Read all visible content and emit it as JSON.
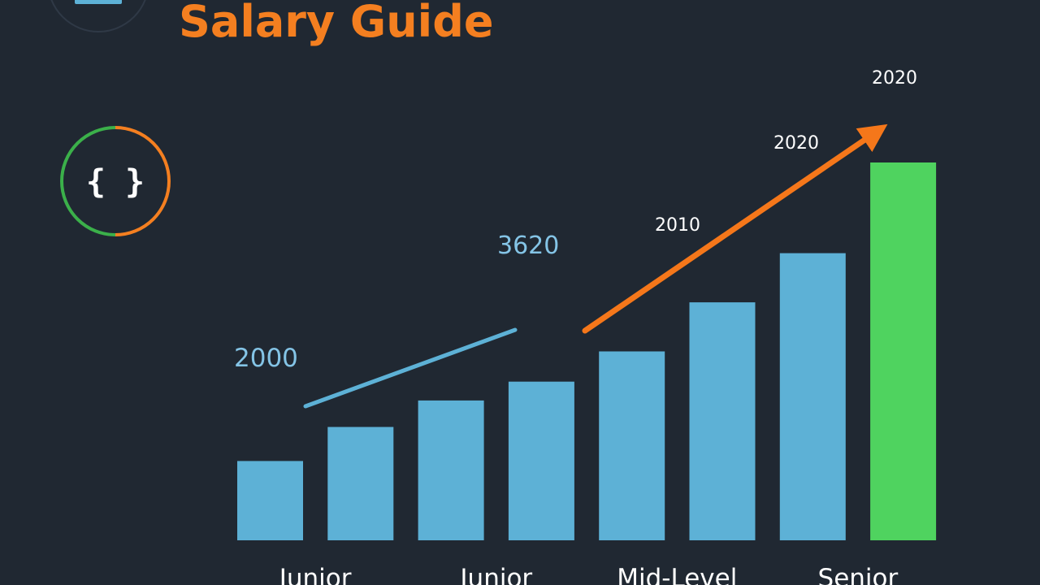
{
  "header": {
    "title": "Salary Guide"
  },
  "badge": {
    "glyph": "{ }"
  },
  "colors": {
    "background": "#202832",
    "title": "#f47f20",
    "bar": "#5db1d6",
    "highlight_bar": "#4fd35f",
    "trend_blue": "#5db1d6",
    "trend_orange": "#f5771a",
    "ring_green": "#3bb04a",
    "ring_orange": "#f47f20",
    "logo_bar": "#5db1d6",
    "annotation_blue": "#84c4e6",
    "annotation_white": "#ffffff",
    "axis_text": "#ffffff"
  },
  "icons": {
    "logo": "circle-logo-icon",
    "badge": "code-braces-icon",
    "arrow": "trend-arrow-icon"
  },
  "chart_data": {
    "type": "bar",
    "title": "Salary Guide",
    "xlabel": "",
    "ylabel": "",
    "ylim": [
      0,
      100
    ],
    "values": [
      21,
      30,
      37,
      42,
      50,
      63,
      76,
      100
    ],
    "highlight_index": 7,
    "tick_labels": [
      {
        "text": "Junior",
        "at": 0.5
      },
      {
        "text": "Junior",
        "at": 2.5
      },
      {
        "text": "Mid-Level",
        "at": 4.5
      },
      {
        "text": "Senior",
        "at": 6.5
      }
    ],
    "annotations": [
      {
        "text": "2000",
        "color": "#84c4e6",
        "kind": "blue"
      },
      {
        "text": "3620",
        "color": "#84c4e6",
        "kind": "blue"
      },
      {
        "text": "2010",
        "color": "#ffffff",
        "kind": "white"
      },
      {
        "text": "2020",
        "color": "#ffffff",
        "kind": "white"
      },
      {
        "text": "2020",
        "color": "#ffffff",
        "kind": "white"
      }
    ],
    "trend_lines": [
      {
        "name": "blue-trend",
        "color": "#5db1d6",
        "arrowhead": false
      },
      {
        "name": "orange-trend",
        "color": "#f5771a",
        "arrowhead": true
      }
    ]
  }
}
